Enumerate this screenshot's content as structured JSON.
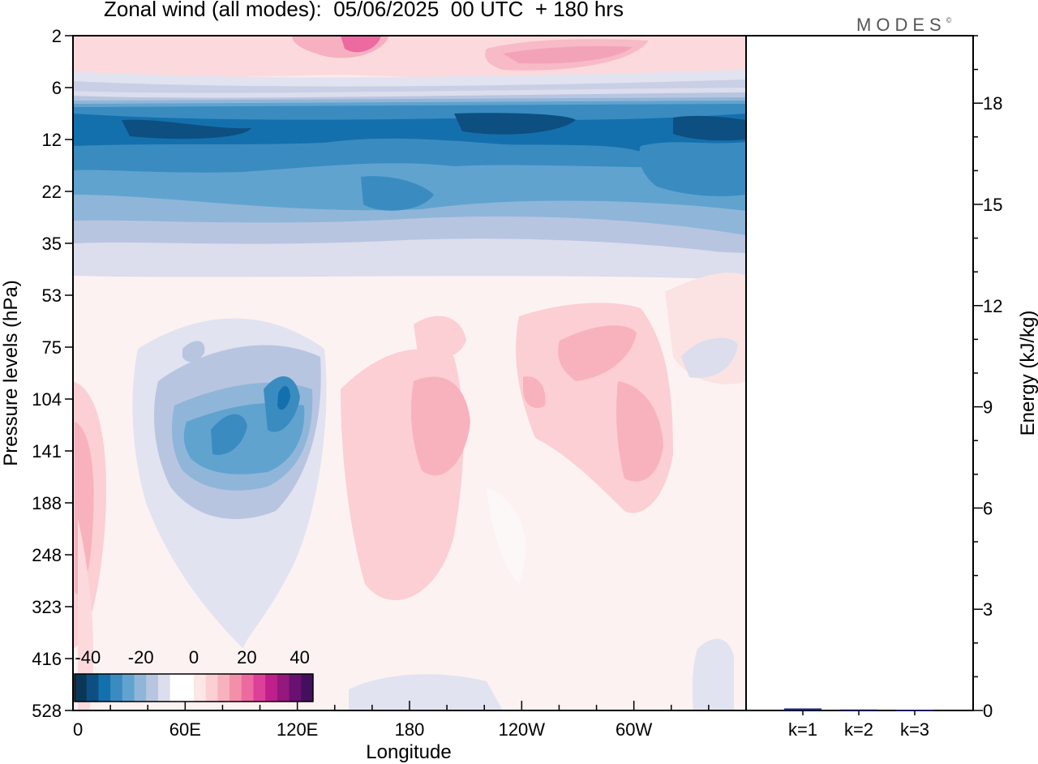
{
  "header": {
    "title": "Zonal wind (all modes):  05/06/2025  00 UTC  + 180 hrs",
    "brand": "MODES",
    "brand_mark": "©"
  },
  "chart_data": [
    {
      "type": "heatmap",
      "title": "Zonal wind (all modes):  05/06/2025  00 UTC  + 180 hrs",
      "xlabel": "Longitude",
      "ylabel": "Pressure levels (hPa)",
      "x_ticks": [
        "0",
        "60E",
        "120E",
        "180",
        "120W",
        "60W"
      ],
      "x_tick_values": [
        0,
        60,
        120,
        180,
        240,
        300
      ],
      "xlim": [
        0,
        360
      ],
      "y_ticks": [
        "2",
        "6",
        "12",
        "22",
        "35",
        "53",
        "75",
        "104",
        "141",
        "188",
        "248",
        "323",
        "416",
        "528"
      ],
      "y_scale": "model levels (inverted, top = 2 hPa)",
      "colorbar": {
        "tick_labels": [
          "-40",
          "-20",
          "0",
          "20",
          "40"
        ],
        "tick_values": [
          -40,
          -20,
          0,
          20,
          40
        ],
        "range": [
          -45,
          45
        ],
        "step": 5,
        "colors": [
          "#0c3658",
          "#0d4f80",
          "#1470ad",
          "#3a8cc0",
          "#61a3cf",
          "#8fb6d8",
          "#b8c5e1",
          "#dcdded",
          "#ffffff",
          "#ffffff",
          "#fde6e6",
          "#fbcfd3",
          "#f8b2bd",
          "#f38fa9",
          "#ec6aa0",
          "#de3f98",
          "#be1f8a",
          "#94187d",
          "#6a1073",
          "#44105e"
        ]
      },
      "field_features": [
        {
          "name": "upper westward jet",
          "lon_range": [
            0,
            360
          ],
          "level_range": [
            "6",
            "35"
          ],
          "value_min": -35
        },
        {
          "name": "westward core",
          "lon_range": [
            40,
            130
          ],
          "level_range": [
            "75",
            "188"
          ],
          "value_min": -30
        },
        {
          "name": "upper eastward band",
          "lon_range": [
            120,
            300
          ],
          "level_range": [
            "2",
            "6"
          ],
          "value_max": 25
        },
        {
          "name": "eastward patches",
          "lon_range": [
            150,
            330
          ],
          "level_range": [
            "53",
            "323"
          ],
          "value_max": 15
        }
      ]
    },
    {
      "type": "bar",
      "title": "",
      "xlabel": "",
      "ylabel": "Energy (kJ/kg)",
      "categories": [
        "k=1",
        "k=2",
        "k=3"
      ],
      "values": [
        0.06,
        0.03,
        0.02
      ],
      "ylim": [
        0,
        20
      ],
      "y_ticks": [
        "0",
        "3",
        "6",
        "9",
        "12",
        "15",
        "18"
      ],
      "bar_color": "#1a237e"
    }
  ]
}
